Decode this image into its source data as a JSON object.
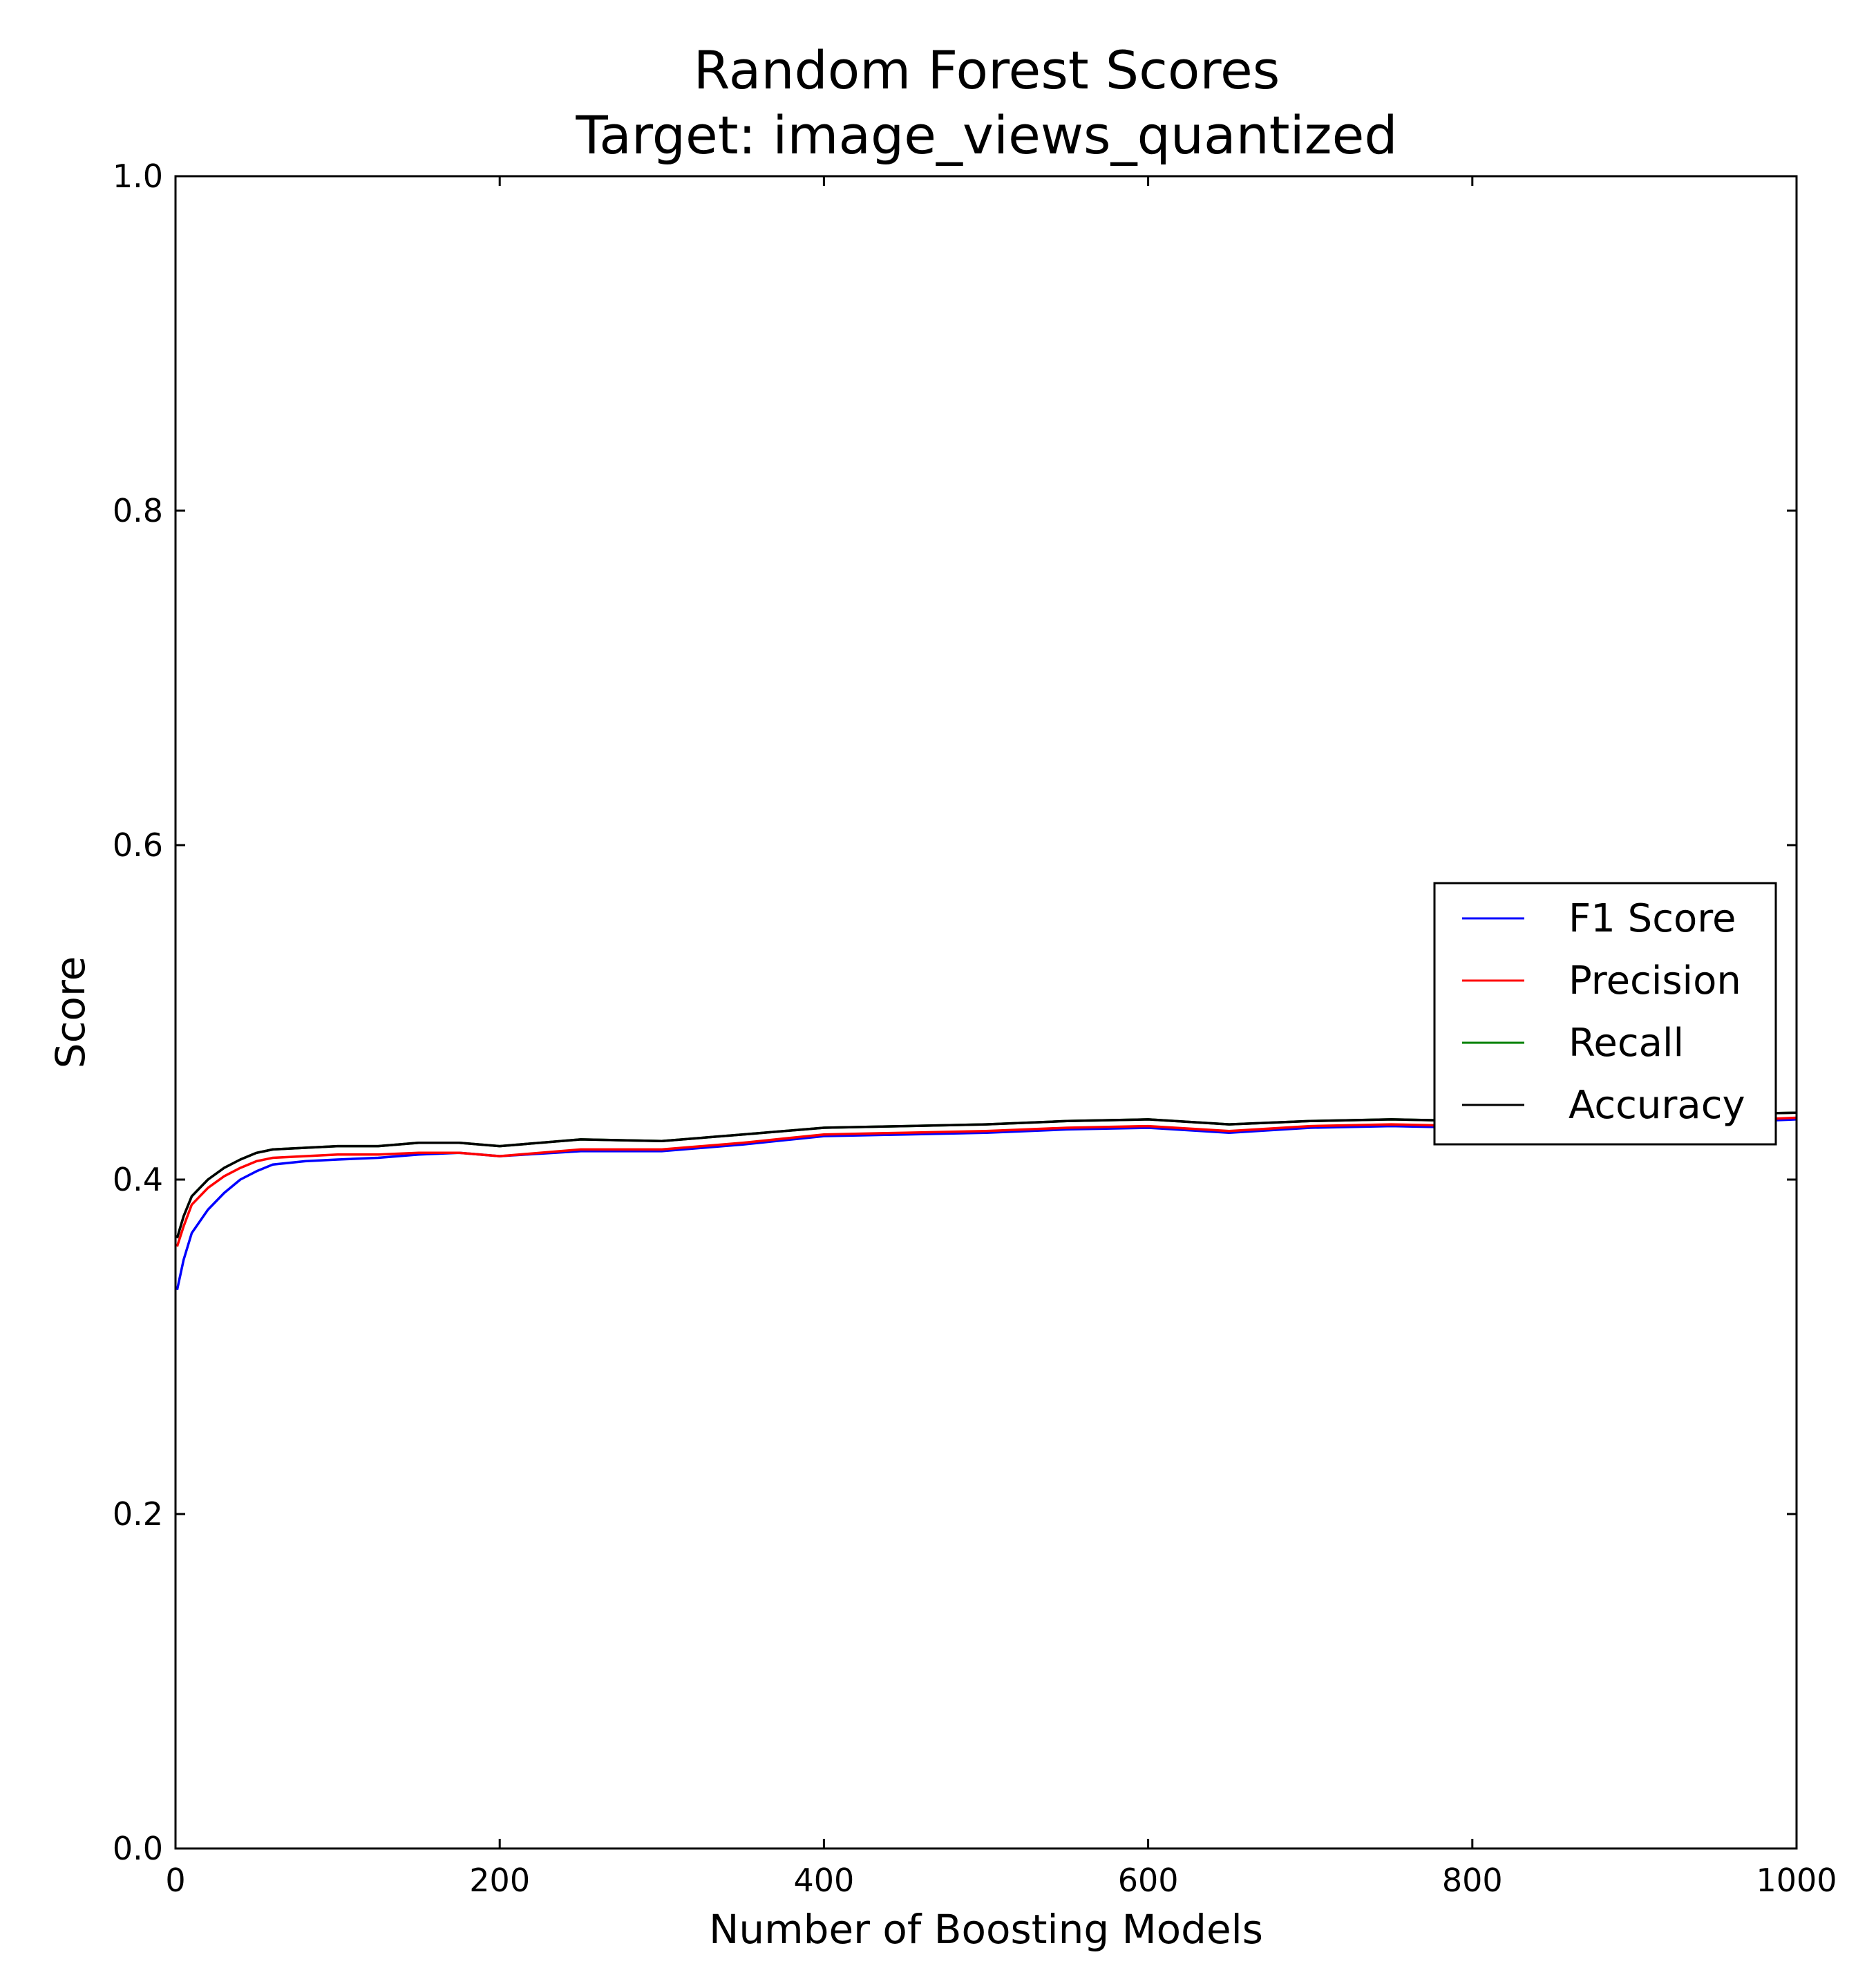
{
  "chart_data": {
    "type": "line",
    "title": "Random Forest Scores",
    "subtitle": "Target: image_views_quantized",
    "xlabel": "Number of Boosting Models",
    "ylabel": "Score",
    "xlim": [
      0,
      1000
    ],
    "ylim": [
      0.0,
      1.0
    ],
    "xticks": [
      0,
      200,
      400,
      600,
      800,
      1000
    ],
    "yticks": [
      0.0,
      0.2,
      0.4,
      0.6,
      0.8,
      1.0
    ],
    "xtick_labels": [
      "0",
      "200",
      "400",
      "600",
      "800",
      "1000"
    ],
    "ytick_labels": [
      "0.0",
      "0.2",
      "0.4",
      "0.6",
      "0.8",
      "1.0"
    ],
    "grid": false,
    "legend_position": "center-right",
    "x": [
      1,
      5,
      10,
      20,
      30,
      40,
      50,
      60,
      80,
      100,
      125,
      150,
      175,
      200,
      250,
      300,
      350,
      400,
      450,
      500,
      550,
      600,
      650,
      700,
      750,
      800,
      850,
      900,
      950,
      1000
    ],
    "series": [
      {
        "name": "F1 Score",
        "color": "#0000ff",
        "values": [
          0.334,
          0.352,
          0.368,
          0.382,
          0.392,
          0.4,
          0.405,
          0.409,
          0.411,
          0.412,
          0.413,
          0.415,
          0.416,
          0.414,
          0.417,
          0.417,
          0.421,
          0.426,
          0.427,
          0.428,
          0.43,
          0.431,
          0.428,
          0.431,
          0.432,
          0.431,
          0.432,
          0.433,
          0.434,
          0.436
        ]
      },
      {
        "name": "Precision",
        "color": "#ff0000",
        "values": [
          0.36,
          0.372,
          0.385,
          0.395,
          0.402,
          0.407,
          0.411,
          0.413,
          0.414,
          0.415,
          0.415,
          0.416,
          0.416,
          0.414,
          0.418,
          0.418,
          0.422,
          0.427,
          0.428,
          0.429,
          0.431,
          0.432,
          0.429,
          0.432,
          0.433,
          0.432,
          0.433,
          0.434,
          0.435,
          0.437
        ]
      },
      {
        "name": "Recall",
        "color": "#008000",
        "values": [
          0.365,
          0.378,
          0.39,
          0.4,
          0.407,
          0.412,
          0.416,
          0.418,
          0.419,
          0.42,
          0.42,
          0.422,
          0.422,
          0.42,
          0.424,
          0.423,
          0.427,
          0.431,
          0.432,
          0.433,
          0.435,
          0.436,
          0.433,
          0.435,
          0.436,
          0.435,
          0.436,
          0.437,
          0.439,
          0.44
        ]
      },
      {
        "name": "Accuracy",
        "color": "#000000",
        "values": [
          0.365,
          0.378,
          0.39,
          0.4,
          0.407,
          0.412,
          0.416,
          0.418,
          0.419,
          0.42,
          0.42,
          0.422,
          0.422,
          0.42,
          0.424,
          0.423,
          0.427,
          0.431,
          0.432,
          0.433,
          0.435,
          0.436,
          0.433,
          0.435,
          0.436,
          0.435,
          0.436,
          0.437,
          0.439,
          0.44
        ]
      }
    ]
  }
}
